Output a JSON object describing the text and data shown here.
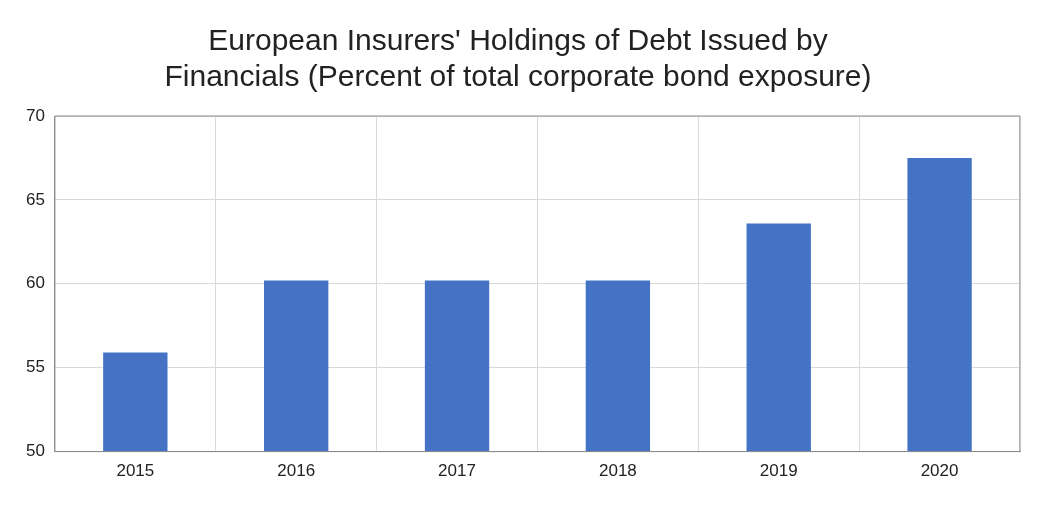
{
  "chart_data": {
    "type": "bar",
    "title": [
      "European Insurers' Holdings of Debt Issued by",
      "Financials (Percent of total corporate bond exposure)"
    ],
    "categories": [
      "2015",
      "2016",
      "2017",
      "2018",
      "2019",
      "2020"
    ],
    "values": [
      55.9,
      60.2,
      60.2,
      60.2,
      63.6,
      67.5
    ],
    "color": "#4472c4",
    "ylim": [
      50,
      70
    ],
    "yticks": [
      50,
      55,
      60,
      65,
      70
    ],
    "grid": true
  }
}
